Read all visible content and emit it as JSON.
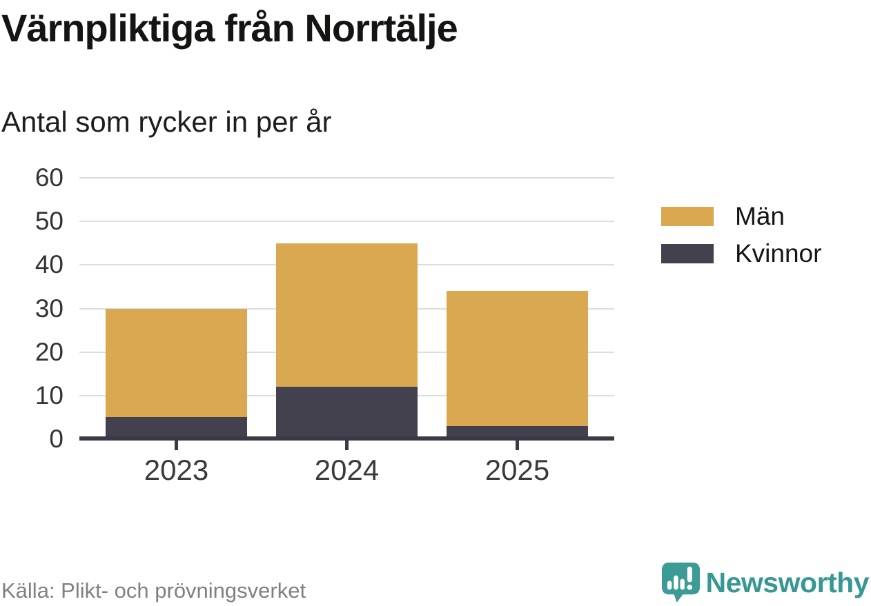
{
  "title": "Värnpliktiga från Norrtälje",
  "subtitle": "Antal som rycker in per år",
  "source": "Källa: Plikt- och prövningsverket",
  "brand": {
    "name": "Newsworthy",
    "icon": "newsworthy-chart-bubble-icon",
    "text_color": "#379792",
    "icon_color": "#3D9B96"
  },
  "chart_data": {
    "type": "bar",
    "stacked": true,
    "title": "Värnpliktiga från Norrtälje",
    "subtitle": "Antal som rycker in per år",
    "categories": [
      "2023",
      "2024",
      "2025"
    ],
    "series": [
      {
        "name": "Kvinnor",
        "color": "#43414E",
        "values": [
          5,
          12,
          3
        ]
      },
      {
        "name": "Män",
        "color": "#D9A851",
        "values": [
          25,
          33,
          31
        ]
      }
    ],
    "stack_totals": [
      30,
      45,
      34
    ],
    "ylim": [
      0,
      60
    ],
    "y_ticks": [
      0,
      10,
      20,
      30,
      40,
      50,
      60
    ],
    "xlabel": "",
    "ylabel": "",
    "grid": "horizontal",
    "gridline_color": "#DDDDDD",
    "axis_color": "#3A3946",
    "legend": {
      "position": "right",
      "entries": [
        "Män",
        "Kvinnor"
      ]
    }
  }
}
